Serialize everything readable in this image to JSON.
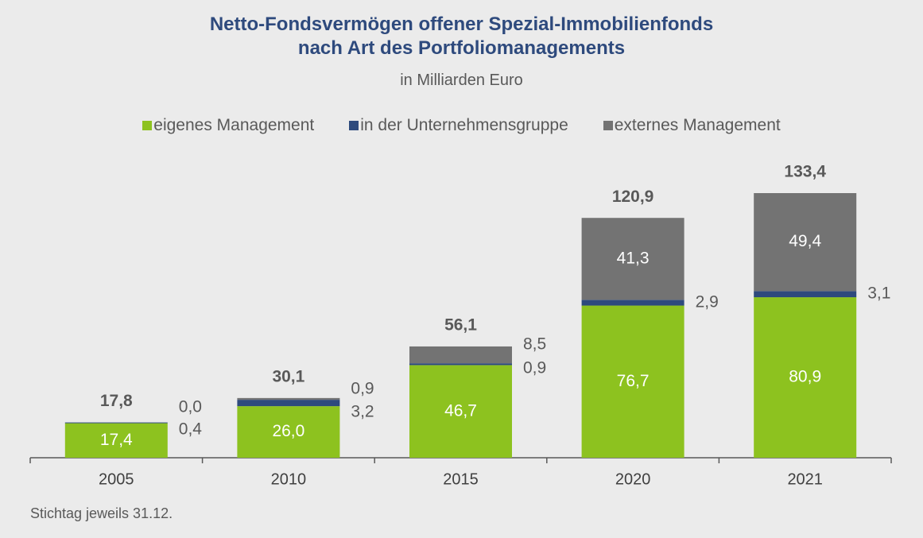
{
  "title_line1": "Netto-Fondsvermögen offener Spezial-Immobilienfonds",
  "title_line2": "nach Art des Portfoliomanagements",
  "subtitle": "in Milliarden Euro",
  "footnote": "Stichtag jeweils 31.12.",
  "colors": {
    "eigenes": "#8dc21f",
    "gruppe": "#2e4a7d",
    "extern": "#737373"
  },
  "chart_data": {
    "type": "bar",
    "stacked": true,
    "categories": [
      "2005",
      "2010",
      "2015",
      "2020",
      "2021"
    ],
    "series": [
      {
        "name": "eigenes Management",
        "values": [
          17.4,
          26.0,
          46.7,
          76.7,
          80.9
        ],
        "labels": [
          "17,4",
          "26,0",
          "46,7",
          "76,7",
          "80,9"
        ]
      },
      {
        "name": "in der Unternehmensgruppe",
        "values": [
          0.4,
          3.2,
          0.9,
          2.9,
          3.1
        ],
        "labels": [
          "0,4",
          "3,2",
          "0,9",
          "2,9",
          "3,1"
        ]
      },
      {
        "name": "externes Management",
        "values": [
          0.0,
          0.9,
          8.5,
          41.3,
          49.4
        ],
        "labels": [
          "0,0",
          "0,9",
          "8,5",
          "41,3",
          "49,4"
        ]
      }
    ],
    "totals": [
      17.8,
      30.1,
      56.1,
      120.9,
      133.4
    ],
    "total_labels": [
      "17,8",
      "30,1",
      "56,1",
      "120,9",
      "133,4"
    ],
    "ylim": [
      0,
      133.4
    ],
    "legend_position": "top",
    "grid": false
  }
}
